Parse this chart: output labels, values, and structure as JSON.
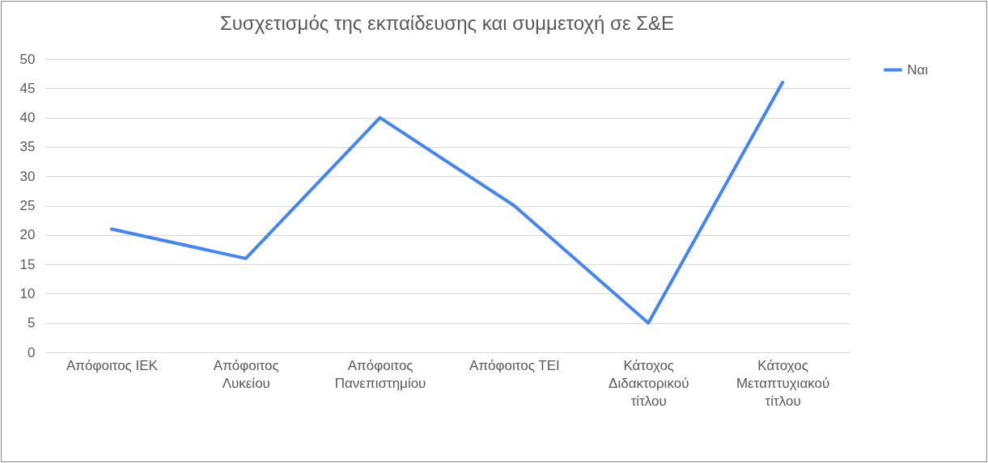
{
  "chart_data": {
    "type": "line",
    "title": "Συσχετισμός της εκπαίδευσης και συμμετοχή σε Σ&Ε",
    "categories": [
      "Απόφοιτος ΙΕΚ",
      "Απόφοιτος Λυκείου",
      "Απόφοιτος Πανεπιστημίου",
      "Απόφοιτος ΤΕΙ",
      "Κάτοχος Διδακτορικού τίτλου",
      "Κάτοχος Μεταπτυχιακού τίτλου"
    ],
    "series": [
      {
        "name": "Ναι",
        "color": "#4285f4",
        "values": [
          21,
          16,
          40,
          25,
          5,
          46
        ]
      }
    ],
    "ylim": [
      0,
      50
    ],
    "yticks": [
      0,
      5,
      10,
      15,
      20,
      25,
      30,
      35,
      40,
      45,
      50
    ],
    "grid": "y",
    "legend": "right",
    "marker": "none"
  }
}
